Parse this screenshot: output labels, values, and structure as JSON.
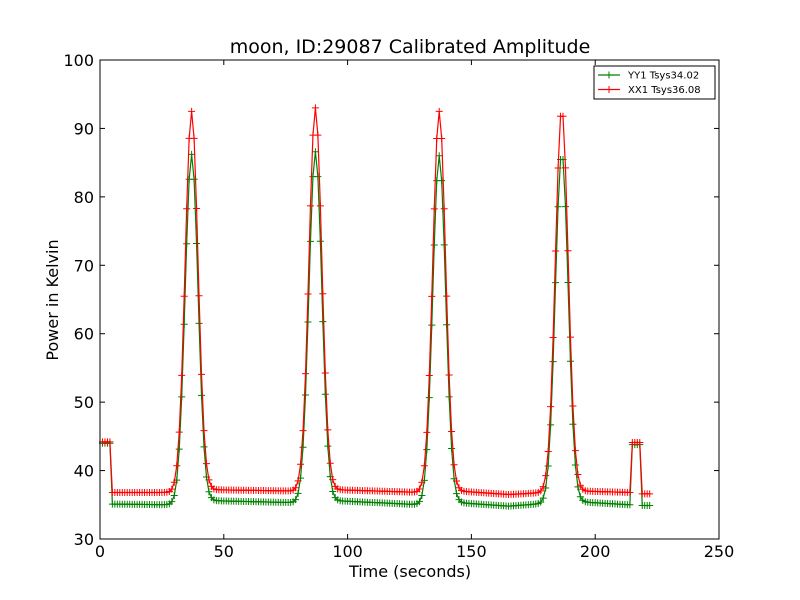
{
  "chart_data": {
    "type": "line",
    "title": "moon, ID:29087 Calibrated Amplitude",
    "xlabel": "Time (seconds)",
    "ylabel": "Power in Kelvin",
    "xlim": [
      0,
      250
    ],
    "ylim": [
      30,
      100
    ],
    "xticks": [
      "0",
      "50",
      "100",
      "150",
      "200",
      "250"
    ],
    "yticks": [
      "30",
      "40",
      "50",
      "60",
      "70",
      "80",
      "90",
      "100"
    ],
    "grid": false,
    "legend_position": "top-right",
    "marker": "+",
    "sampling_step_seconds": 1,
    "series": [
      {
        "name": "YY1 Tsys34.02",
        "color": "#008000",
        "segments": [
          {
            "x_start": 1,
            "x_end": 4,
            "baseline": 44.0,
            "peaks": []
          },
          {
            "x_start": 5,
            "x_end": 214,
            "baseline_points": [
              [
                5,
                35.1
              ],
              [
                30,
                35.0
              ],
              [
                45,
                35.6
              ],
              [
                80,
                35.3
              ],
              [
                95,
                35.6
              ],
              [
                130,
                35.0
              ],
              [
                145,
                35.3
              ],
              [
                165,
                34.8
              ],
              [
                180,
                35.2
              ],
              [
                195,
                35.4
              ],
              [
                214,
                35.0
              ]
            ],
            "peaks": [
              {
                "center": 37.0,
                "height": 86.2,
                "sigma": 2.6
              },
              {
                "center": 87.0,
                "height": 86.6,
                "sigma": 2.6
              },
              {
                "center": 137.0,
                "height": 86.0,
                "sigma": 2.6
              },
              {
                "center": 186.5,
                "height": 86.4,
                "sigma": 2.6
              }
            ]
          },
          {
            "x_start": 215,
            "x_end": 218,
            "baseline": 43.8,
            "peaks": []
          },
          {
            "x_start": 219,
            "x_end": 222,
            "baseline": 34.9,
            "peaks": []
          }
        ]
      },
      {
        "name": "XX1 Tsys36.08",
        "color": "#ff0000",
        "segments": [
          {
            "x_start": 1,
            "x_end": 4,
            "baseline": 44.2,
            "peaks": []
          },
          {
            "x_start": 5,
            "x_end": 214,
            "baseline_points": [
              [
                5,
                36.8
              ],
              [
                30,
                36.8
              ],
              [
                45,
                37.2
              ],
              [
                80,
                37.0
              ],
              [
                95,
                37.2
              ],
              [
                130,
                36.8
              ],
              [
                145,
                37.0
              ],
              [
                165,
                36.5
              ],
              [
                180,
                36.8
              ],
              [
                195,
                37.0
              ],
              [
                214,
                36.8
              ]
            ],
            "peaks": [
              {
                "center": 37.0,
                "height": 92.5,
                "sigma": 2.6
              },
              {
                "center": 87.0,
                "height": 93.0,
                "sigma": 2.6
              },
              {
                "center": 137.0,
                "height": 92.5,
                "sigma": 2.6
              },
              {
                "center": 186.5,
                "height": 92.8,
                "sigma": 2.6
              }
            ]
          },
          {
            "x_start": 215,
            "x_end": 218,
            "baseline": 44.1,
            "peaks": []
          },
          {
            "x_start": 219,
            "x_end": 222,
            "baseline": 36.6,
            "peaks": []
          }
        ]
      }
    ]
  }
}
